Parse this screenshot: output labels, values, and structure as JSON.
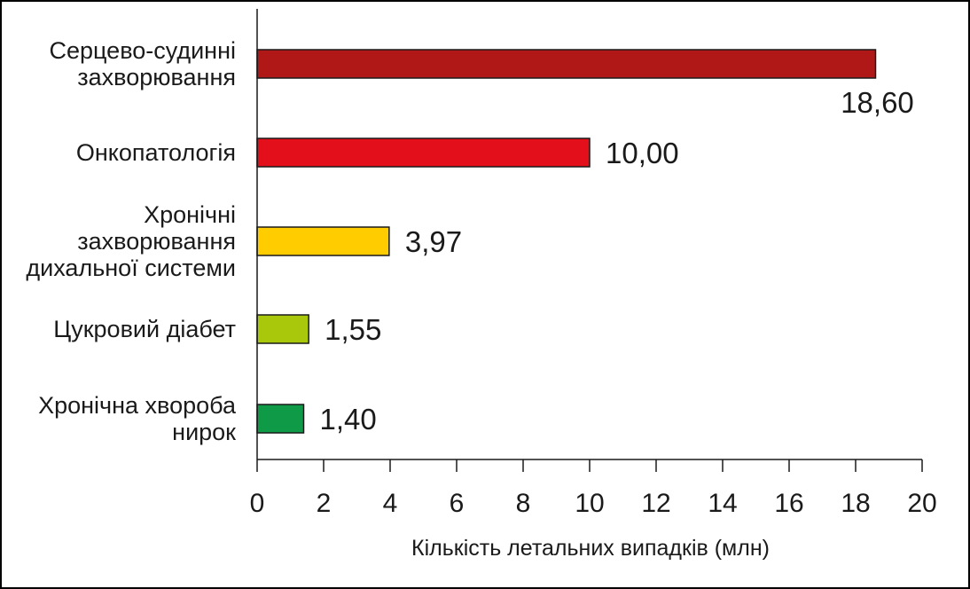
{
  "chart_data": {
    "type": "bar",
    "orientation": "horizontal",
    "categories": [
      [
        "Серцево-судинні",
        "захворювання"
      ],
      [
        "Онкопатологія"
      ],
      [
        "Хронічні",
        "захворювання",
        "дихальної системи"
      ],
      [
        "Цукровий діабет"
      ],
      [
        "Хронічна хвороба",
        "нирок"
      ]
    ],
    "values": [
      18.6,
      10.0,
      3.97,
      1.55,
      1.4
    ],
    "value_labels": [
      "18,60",
      "10,00",
      "3,97",
      "1,55",
      "1,40"
    ],
    "colors": [
      "#b01818",
      "#e3101c",
      "#ffcc00",
      "#a9c80c",
      "#0f9a48"
    ],
    "xlabel": "Кількість летальних випадків (млн)",
    "xlim": [
      0,
      20
    ],
    "xticks": [
      0,
      2,
      4,
      6,
      8,
      10,
      12,
      14,
      16,
      18,
      20
    ],
    "grid": false,
    "legend": "none"
  }
}
